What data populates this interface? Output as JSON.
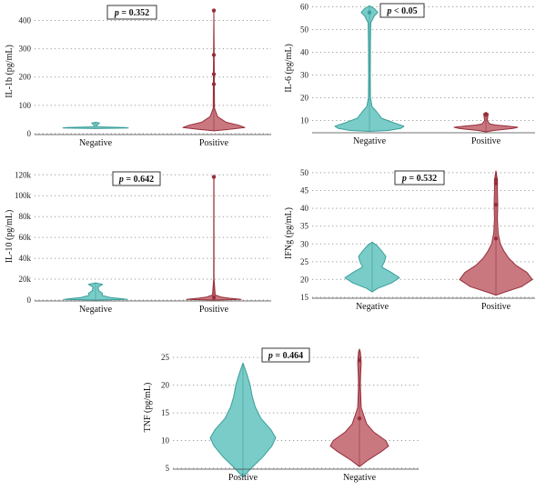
{
  "chart_data": [
    {
      "type": "violin",
      "ylabel": "IL-1b (pg/mL)",
      "categories": [
        "Negative",
        "Positive"
      ],
      "ylim": [
        0,
        440
      ],
      "yticks": [
        0,
        100,
        200,
        300,
        400
      ],
      "ytick_labels": [
        "0",
        "100",
        "200",
        "300",
        "400"
      ],
      "annotation": "p = 0.352",
      "series": [
        {
          "color": "#79CCC8",
          "stroke": "#3A9E9A",
          "profile": [
            [
              18,
              0.0
            ],
            [
              20,
              1.0
            ],
            [
              22,
              0.9
            ],
            [
              24,
              0.05
            ],
            [
              30,
              0.05
            ],
            [
              38,
              0.12
            ],
            [
              40,
              0.0
            ]
          ],
          "points": []
        },
        {
          "color": "#C97880",
          "stroke": "#962E3A",
          "profile": [
            [
              10,
              0.0
            ],
            [
              15,
              0.5
            ],
            [
              22,
              1.0
            ],
            [
              30,
              0.8
            ],
            [
              40,
              0.4
            ],
            [
              60,
              0.12
            ],
            [
              90,
              0.02
            ],
            [
              200,
              0.015
            ],
            [
              435,
              0.0
            ]
          ],
          "points": [
            175,
            210,
            278,
            435
          ]
        }
      ]
    },
    {
      "type": "violin",
      "ylabel": "IL-6 (pg/mL)",
      "categories": [
        "Negative",
        "Positive"
      ],
      "ylim": [
        5,
        61
      ],
      "yticks": [
        10,
        20,
        30,
        40,
        50,
        60
      ],
      "ytick_labels": [
        "10",
        "20",
        "30",
        "40",
        "50",
        "60"
      ],
      "annotation": "p < 0.05",
      "series": [
        {
          "color": "#79CCC8",
          "stroke": "#3A9E9A",
          "profile": [
            [
              5.2,
              0.0
            ],
            [
              5.6,
              0.55
            ],
            [
              6.5,
              0.9
            ],
            [
              7.5,
              1.0
            ],
            [
              9,
              0.7
            ],
            [
              11,
              0.35
            ],
            [
              14,
              0.2
            ],
            [
              16,
              0.08
            ],
            [
              20,
              0.03
            ],
            [
              30,
              0.025
            ],
            [
              45,
              0.03
            ],
            [
              53,
              0.04
            ],
            [
              56,
              0.14
            ],
            [
              57.5,
              0.24
            ],
            [
              59,
              0.16
            ],
            [
              60.5,
              0.0
            ]
          ],
          "points": [
            57.5
          ]
        },
        {
          "color": "#C97880",
          "stroke": "#962E3A",
          "profile": [
            [
              5,
              0.0
            ],
            [
              5.6,
              0.25
            ],
            [
              6.5,
              0.85
            ],
            [
              7,
              1.0
            ],
            [
              7.5,
              0.7
            ],
            [
              8,
              0.3
            ],
            [
              8.5,
              0.12
            ],
            [
              10,
              0.04
            ],
            [
              13,
              0.07
            ],
            [
              13.6,
              0.0
            ]
          ],
          "points": [
            12.5
          ]
        }
      ]
    },
    {
      "type": "violin",
      "ylabel": "IL-10 (pg/mL)",
      "categories": [
        "Negative",
        "Positive"
      ],
      "ylim": [
        0,
        122000
      ],
      "yticks": [
        0,
        20000,
        40000,
        60000,
        80000,
        100000,
        120000
      ],
      "ytick_labels": [
        "0",
        "20k",
        "40k",
        "60k",
        "80k",
        "100k",
        "120k"
      ],
      "annotation": "p = 0.642",
      "series": [
        {
          "color": "#79CCC8",
          "stroke": "#3A9E9A",
          "profile": [
            [
              0,
              0.0
            ],
            [
              700,
              1.0
            ],
            [
              2500,
              0.45
            ],
            [
              4500,
              0.2
            ],
            [
              6500,
              0.22
            ],
            [
              9000,
              0.1
            ],
            [
              12500,
              0.08
            ],
            [
              15000,
              0.22
            ],
            [
              16500,
              0.0
            ]
          ],
          "points": []
        },
        {
          "color": "#C97880",
          "stroke": "#962E3A",
          "profile": [
            [
              0,
              0.0
            ],
            [
              600,
              1.0
            ],
            [
              1800,
              0.55
            ],
            [
              3000,
              0.25
            ],
            [
              5000,
              0.05
            ],
            [
              20000,
              0.005
            ],
            [
              118500,
              0.004
            ],
            [
              119500,
              0.0
            ]
          ],
          "points": [
            2500,
            118000
          ]
        }
      ]
    },
    {
      "type": "violin",
      "ylabel": "IFNg (pg/mL)",
      "categories": [
        "Negative",
        "Positive"
      ],
      "ylim": [
        15,
        51
      ],
      "yticks": [
        15,
        20,
        25,
        30,
        35,
        40,
        45,
        50
      ],
      "ytick_labels": [
        "15",
        "20",
        "25",
        "30",
        "35",
        "40",
        "45",
        "50"
      ],
      "annotation": "p = 0.532",
      "series": [
        {
          "color": "#79CCC8",
          "stroke": "#3A9E9A",
          "profile": [
            [
              16.5,
              0.0
            ],
            [
              17.5,
              0.2
            ],
            [
              19,
              0.7
            ],
            [
              20.5,
              1.0
            ],
            [
              22,
              0.7
            ],
            [
              23.5,
              0.35
            ],
            [
              25,
              0.45
            ],
            [
              26.5,
              0.5
            ],
            [
              28,
              0.35
            ],
            [
              29.5,
              0.18
            ],
            [
              30.5,
              0.0
            ]
          ],
          "points": []
        },
        {
          "color": "#C97880",
          "stroke": "#962E3A",
          "profile": [
            [
              15.6,
              0.0
            ],
            [
              16.5,
              0.25
            ],
            [
              18,
              0.7
            ],
            [
              20,
              1.0
            ],
            [
              22,
              0.85
            ],
            [
              24,
              0.55
            ],
            [
              26,
              0.35
            ],
            [
              28,
              0.22
            ],
            [
              30,
              0.12
            ],
            [
              33,
              0.06
            ],
            [
              37,
              0.04
            ],
            [
              41,
              0.05
            ],
            [
              45,
              0.04
            ],
            [
              48,
              0.04
            ],
            [
              50.5,
              0.0
            ]
          ],
          "points": [
            31.5,
            41,
            47,
            48
          ]
        }
      ]
    },
    {
      "type": "violin",
      "ylabel": "TNF (pg/mL)",
      "categories": [
        "Positive",
        "Negative"
      ],
      "ylim": [
        5,
        27
      ],
      "yticks": [
        5,
        10,
        15,
        20,
        25
      ],
      "ytick_labels": [
        "5",
        "10",
        "15",
        "20",
        "25"
      ],
      "annotation": "p = 0.464",
      "series": [
        {
          "color": "#79CCC8",
          "stroke": "#3A9E9A",
          "profile": [
            [
              3.4,
              0.0
            ],
            [
              5,
              0.25
            ],
            [
              7,
              0.6
            ],
            [
              9,
              0.88
            ],
            [
              10.5,
              1.0
            ],
            [
              12,
              0.85
            ],
            [
              14,
              0.55
            ],
            [
              16,
              0.38
            ],
            [
              18,
              0.28
            ],
            [
              20,
              0.22
            ],
            [
              22,
              0.12
            ],
            [
              23.5,
              0.03
            ],
            [
              24,
              0.0
            ]
          ],
          "points": []
        },
        {
          "color": "#C97880",
          "stroke": "#962E3A",
          "profile": [
            [
              5.3,
              0.0
            ],
            [
              6.5,
              0.3
            ],
            [
              8,
              0.75
            ],
            [
              9,
              1.0
            ],
            [
              10,
              0.9
            ],
            [
              11.5,
              0.5
            ],
            [
              13,
              0.25
            ],
            [
              14.5,
              0.15
            ],
            [
              16,
              0.06
            ],
            [
              20,
              0.03
            ],
            [
              22,
              0.04
            ],
            [
              24,
              0.06
            ],
            [
              26,
              0.03
            ],
            [
              26.5,
              0.0
            ]
          ],
          "points": [
            14,
            24.5
          ]
        }
      ]
    }
  ]
}
